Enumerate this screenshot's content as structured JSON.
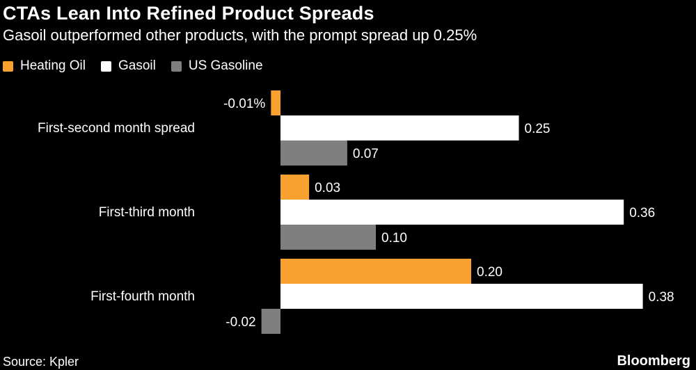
{
  "header": {
    "title": "CTAs Lean Into Refined Product Spreads",
    "subtitle": "Gasoil outperformed other products, with the prompt spread up 0.25%"
  },
  "footer": {
    "source": "Source: Kpler",
    "brand": "Bloomberg"
  },
  "colors": {
    "background": "#000000",
    "heating_oil": "#f9a12e",
    "gasoil": "#ffffff",
    "us_gasoline": "#7f7f7f"
  },
  "chart_data": {
    "type": "bar",
    "orientation": "horizontal",
    "title": "CTAs Lean Into Refined Product Spreads",
    "subtitle": "Gasoil outperformed other products, with the prompt spread up 0.25%",
    "categories": [
      "First-second month spread",
      "First-third month",
      "First-fourth month"
    ],
    "series": [
      {
        "name": "Heating Oil",
        "color": "#f9a12e",
        "values": [
          -0.01,
          0.03,
          0.2
        ],
        "labels": [
          "-0.01%",
          "0.03",
          "0.20"
        ]
      },
      {
        "name": "Gasoil",
        "color": "#ffffff",
        "values": [
          0.25,
          0.36,
          0.38
        ],
        "labels": [
          "0.25",
          "0.36",
          "0.38"
        ]
      },
      {
        "name": "US Gasoline",
        "color": "#7f7f7f",
        "values": [
          0.07,
          0.1,
          -0.02
        ],
        "labels": [
          "0.07",
          "0.10",
          "-0.02"
        ]
      }
    ],
    "xlim": [
      -0.02,
      0.38
    ],
    "grid": false,
    "legend_position": "top-left"
  }
}
